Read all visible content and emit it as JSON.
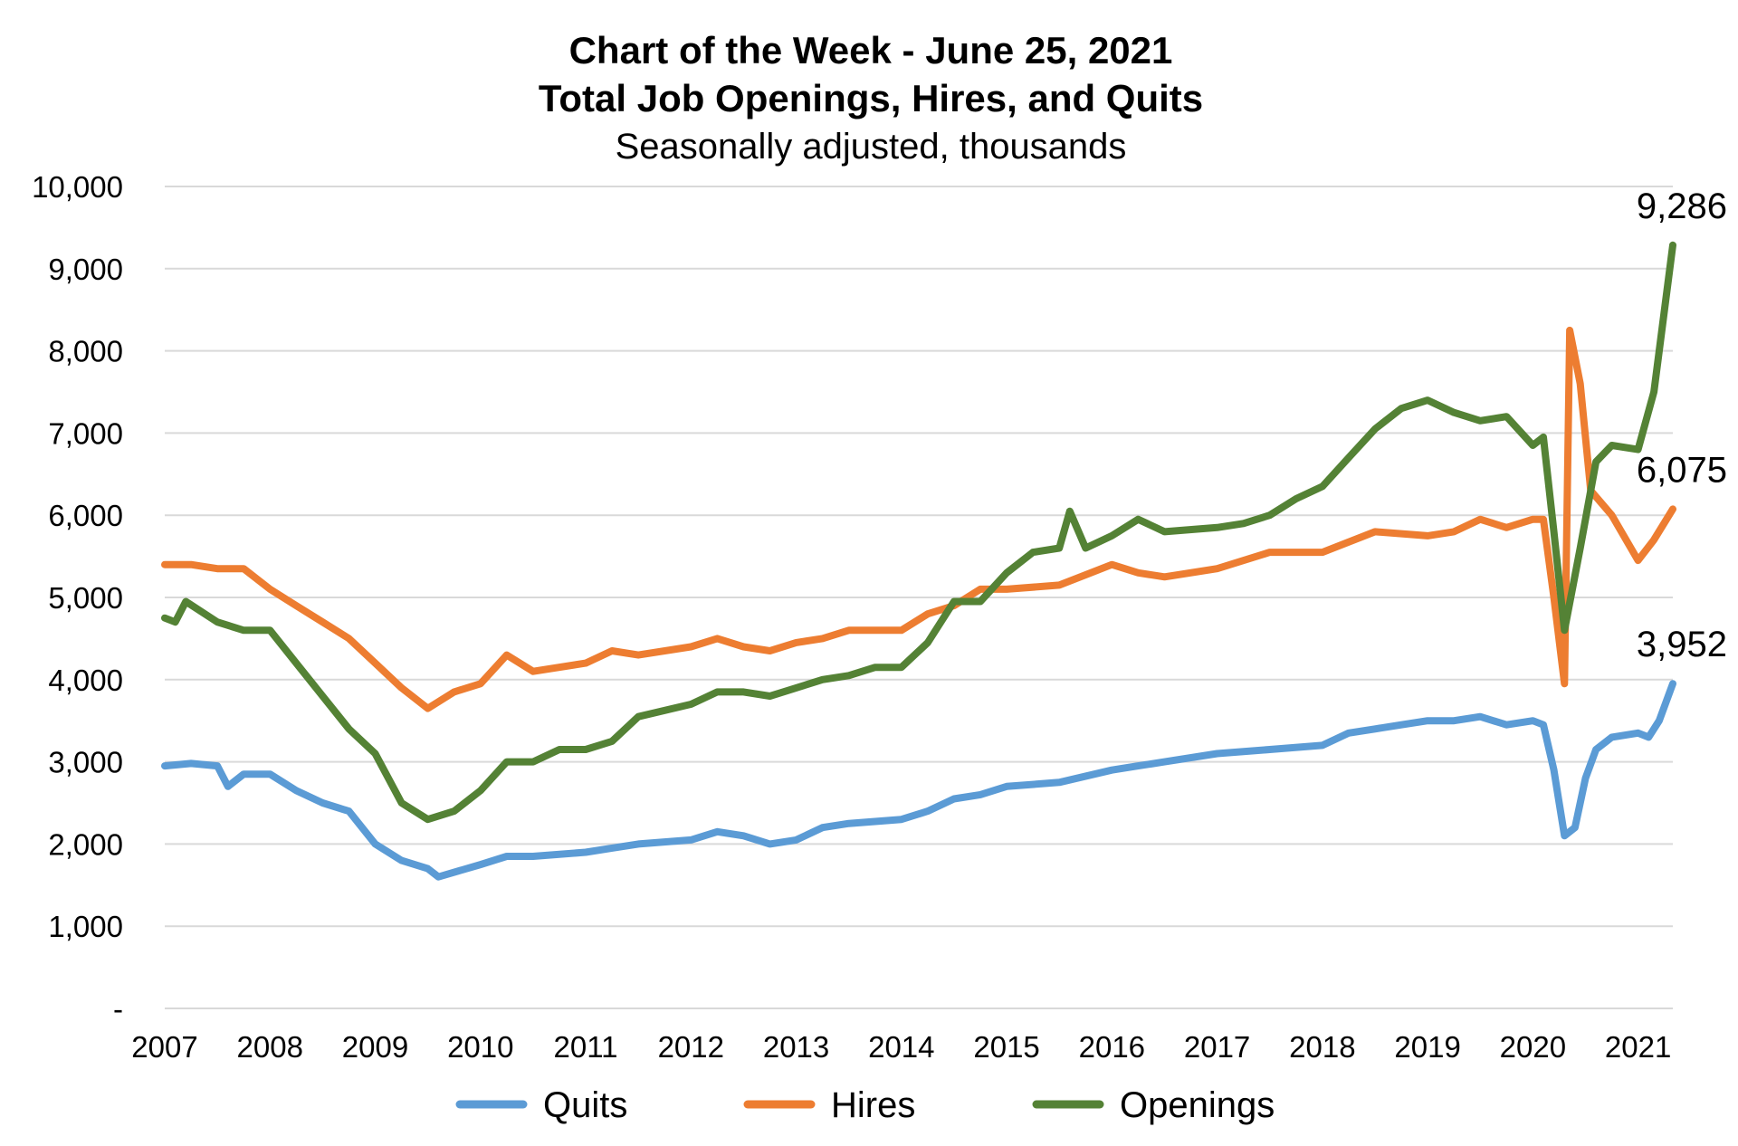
{
  "chart_data": {
    "type": "line",
    "title": "Chart of the Week - June 25, 2021",
    "title2": "Total Job Openings, Hires, and Quits",
    "subtitle": "Seasonally adjusted, thousands",
    "xlabel": "",
    "ylabel": "",
    "xlim": [
      2007.0,
      2021.33
    ],
    "ylim": [
      0,
      10000
    ],
    "y_ticks": [
      {
        "value": 0,
        "label": "-"
      },
      {
        "value": 1000,
        "label": "1,000"
      },
      {
        "value": 2000,
        "label": "2,000"
      },
      {
        "value": 3000,
        "label": "3,000"
      },
      {
        "value": 4000,
        "label": "4,000"
      },
      {
        "value": 5000,
        "label": "5,000"
      },
      {
        "value": 6000,
        "label": "6,000"
      },
      {
        "value": 7000,
        "label": "7,000"
      },
      {
        "value": 8000,
        "label": "8,000"
      },
      {
        "value": 9000,
        "label": "9,000"
      },
      {
        "value": 10000,
        "label": "10,000"
      }
    ],
    "x_ticks": [
      {
        "value": 2007,
        "label": "2007"
      },
      {
        "value": 2008,
        "label": "2008"
      },
      {
        "value": 2009,
        "label": "2009"
      },
      {
        "value": 2010,
        "label": "2010"
      },
      {
        "value": 2011,
        "label": "2011"
      },
      {
        "value": 2012,
        "label": "2012"
      },
      {
        "value": 2013,
        "label": "2013"
      },
      {
        "value": 2014,
        "label": "2014"
      },
      {
        "value": 2015,
        "label": "2015"
      },
      {
        "value": 2016,
        "label": "2016"
      },
      {
        "value": 2017,
        "label": "2017"
      },
      {
        "value": 2018,
        "label": "2018"
      },
      {
        "value": 2019,
        "label": "2019"
      },
      {
        "value": 2020,
        "label": "2020"
      },
      {
        "value": 2021,
        "label": "2021"
      }
    ],
    "grid": true,
    "legend_position": "bottom",
    "series": [
      {
        "name": "Quits",
        "color": "#5B9BD5",
        "end_label": "3,952",
        "points": [
          [
            2007.0,
            2950
          ],
          [
            2007.25,
            2980
          ],
          [
            2007.5,
            2950
          ],
          [
            2007.6,
            2700
          ],
          [
            2007.75,
            2850
          ],
          [
            2008.0,
            2850
          ],
          [
            2008.25,
            2650
          ],
          [
            2008.5,
            2500
          ],
          [
            2008.75,
            2400
          ],
          [
            2009.0,
            2000
          ],
          [
            2009.25,
            1800
          ],
          [
            2009.5,
            1700
          ],
          [
            2009.6,
            1600
          ],
          [
            2010.0,
            1750
          ],
          [
            2010.25,
            1850
          ],
          [
            2010.5,
            1850
          ],
          [
            2011.0,
            1900
          ],
          [
            2011.25,
            1950
          ],
          [
            2011.5,
            2000
          ],
          [
            2012.0,
            2050
          ],
          [
            2012.25,
            2150
          ],
          [
            2012.5,
            2100
          ],
          [
            2012.75,
            2000
          ],
          [
            2013.0,
            2050
          ],
          [
            2013.25,
            2200
          ],
          [
            2013.5,
            2250
          ],
          [
            2014.0,
            2300
          ],
          [
            2014.25,
            2400
          ],
          [
            2014.5,
            2550
          ],
          [
            2014.75,
            2600
          ],
          [
            2015.0,
            2700
          ],
          [
            2015.5,
            2750
          ],
          [
            2016.0,
            2900
          ],
          [
            2016.25,
            2950
          ],
          [
            2016.5,
            3000
          ],
          [
            2017.0,
            3100
          ],
          [
            2017.5,
            3150
          ],
          [
            2018.0,
            3200
          ],
          [
            2018.25,
            3350
          ],
          [
            2018.5,
            3400
          ],
          [
            2018.75,
            3450
          ],
          [
            2019.0,
            3500
          ],
          [
            2019.25,
            3500
          ],
          [
            2019.5,
            3550
          ],
          [
            2019.75,
            3450
          ],
          [
            2020.0,
            3500
          ],
          [
            2020.1,
            3450
          ],
          [
            2020.2,
            2900
          ],
          [
            2020.3,
            2100
          ],
          [
            2020.4,
            2200
          ],
          [
            2020.5,
            2800
          ],
          [
            2020.6,
            3150
          ],
          [
            2020.75,
            3300
          ],
          [
            2021.0,
            3350
          ],
          [
            2021.1,
            3300
          ],
          [
            2021.2,
            3500
          ],
          [
            2021.33,
            3952
          ]
        ]
      },
      {
        "name": "Hires",
        "color": "#ED7D31",
        "end_label": "6,075",
        "points": [
          [
            2007.0,
            5400
          ],
          [
            2007.25,
            5400
          ],
          [
            2007.5,
            5350
          ],
          [
            2007.75,
            5350
          ],
          [
            2008.0,
            5100
          ],
          [
            2008.25,
            4900
          ],
          [
            2008.5,
            4700
          ],
          [
            2008.75,
            4500
          ],
          [
            2009.0,
            4200
          ],
          [
            2009.25,
            3900
          ],
          [
            2009.5,
            3650
          ],
          [
            2009.75,
            3850
          ],
          [
            2010.0,
            3950
          ],
          [
            2010.25,
            4300
          ],
          [
            2010.5,
            4100
          ],
          [
            2011.0,
            4200
          ],
          [
            2011.25,
            4350
          ],
          [
            2011.5,
            4300
          ],
          [
            2012.0,
            4400
          ],
          [
            2012.25,
            4500
          ],
          [
            2012.5,
            4400
          ],
          [
            2012.75,
            4350
          ],
          [
            2013.0,
            4450
          ],
          [
            2013.25,
            4500
          ],
          [
            2013.5,
            4600
          ],
          [
            2014.0,
            4600
          ],
          [
            2014.25,
            4800
          ],
          [
            2014.5,
            4900
          ],
          [
            2014.75,
            5100
          ],
          [
            2015.0,
            5100
          ],
          [
            2015.5,
            5150
          ],
          [
            2016.0,
            5400
          ],
          [
            2016.25,
            5300
          ],
          [
            2016.5,
            5250
          ],
          [
            2017.0,
            5350
          ],
          [
            2017.5,
            5550
          ],
          [
            2018.0,
            5550
          ],
          [
            2018.5,
            5800
          ],
          [
            2019.0,
            5750
          ],
          [
            2019.25,
            5800
          ],
          [
            2019.5,
            5950
          ],
          [
            2019.75,
            5850
          ],
          [
            2020.0,
            5950
          ],
          [
            2020.1,
            5950
          ],
          [
            2020.2,
            5000
          ],
          [
            2020.3,
            3950
          ],
          [
            2020.35,
            8250
          ],
          [
            2020.45,
            7600
          ],
          [
            2020.55,
            6300
          ],
          [
            2020.75,
            6000
          ],
          [
            2021.0,
            5450
          ],
          [
            2021.15,
            5700
          ],
          [
            2021.33,
            6075
          ]
        ]
      },
      {
        "name": "Openings",
        "color": "#548235",
        "end_label": "9,286",
        "points": [
          [
            2007.0,
            4750
          ],
          [
            2007.1,
            4700
          ],
          [
            2007.2,
            4950
          ],
          [
            2007.5,
            4700
          ],
          [
            2007.75,
            4600
          ],
          [
            2008.0,
            4600
          ],
          [
            2008.25,
            4200
          ],
          [
            2008.5,
            3800
          ],
          [
            2008.75,
            3400
          ],
          [
            2009.0,
            3100
          ],
          [
            2009.25,
            2500
          ],
          [
            2009.5,
            2300
          ],
          [
            2009.75,
            2400
          ],
          [
            2010.0,
            2650
          ],
          [
            2010.25,
            3000
          ],
          [
            2010.5,
            3000
          ],
          [
            2010.75,
            3150
          ],
          [
            2011.0,
            3150
          ],
          [
            2011.25,
            3250
          ],
          [
            2011.5,
            3550
          ],
          [
            2012.0,
            3700
          ],
          [
            2012.25,
            3850
          ],
          [
            2012.5,
            3850
          ],
          [
            2012.75,
            3800
          ],
          [
            2013.0,
            3900
          ],
          [
            2013.25,
            4000
          ],
          [
            2013.5,
            4050
          ],
          [
            2013.75,
            4150
          ],
          [
            2014.0,
            4150
          ],
          [
            2014.25,
            4450
          ],
          [
            2014.5,
            4950
          ],
          [
            2014.75,
            4950
          ],
          [
            2015.0,
            5300
          ],
          [
            2015.25,
            5550
          ],
          [
            2015.5,
            5600
          ],
          [
            2015.6,
            6050
          ],
          [
            2015.75,
            5600
          ],
          [
            2016.0,
            5750
          ],
          [
            2016.25,
            5950
          ],
          [
            2016.5,
            5800
          ],
          [
            2017.0,
            5850
          ],
          [
            2017.25,
            5900
          ],
          [
            2017.5,
            6000
          ],
          [
            2017.75,
            6200
          ],
          [
            2018.0,
            6350
          ],
          [
            2018.25,
            6700
          ],
          [
            2018.5,
            7050
          ],
          [
            2018.75,
            7300
          ],
          [
            2019.0,
            7400
          ],
          [
            2019.25,
            7250
          ],
          [
            2019.5,
            7150
          ],
          [
            2019.75,
            7200
          ],
          [
            2020.0,
            6850
          ],
          [
            2020.1,
            6950
          ],
          [
            2020.2,
            5800
          ],
          [
            2020.3,
            4600
          ],
          [
            2020.45,
            5600
          ],
          [
            2020.6,
            6650
          ],
          [
            2020.75,
            6850
          ],
          [
            2021.0,
            6800
          ],
          [
            2021.15,
            7500
          ],
          [
            2021.33,
            9286
          ]
        ]
      }
    ]
  }
}
